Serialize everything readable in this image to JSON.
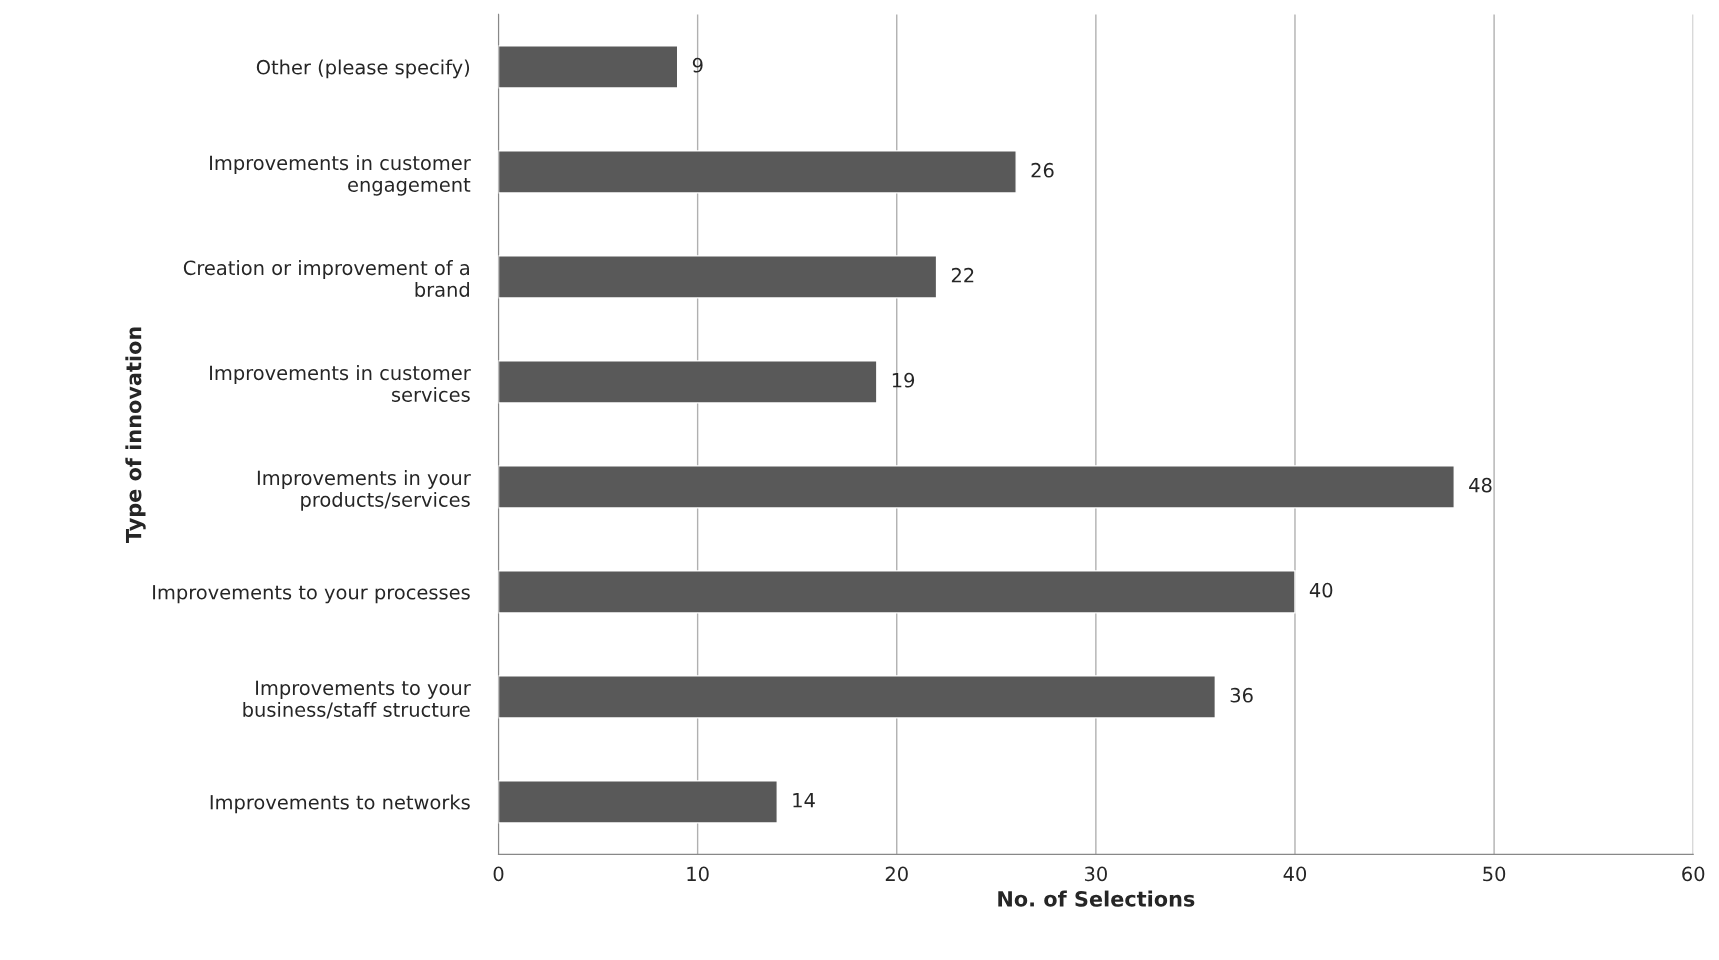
{
  "chart_data": {
    "type": "bar",
    "orientation": "horizontal",
    "xlabel": "No. of Selections",
    "ylabel": "Type of innovation",
    "categories": [
      "Other (please specify)",
      "Improvements in customer\nengagement",
      "Creation or improvement of a\nbrand",
      "Improvements in customer\nservices",
      "Improvements in your\nproducts/services",
      "Improvements to your processes",
      "Improvements to your\nbusiness/staff structure",
      "Improvements to networks"
    ],
    "values": [
      9,
      26,
      22,
      19,
      48,
      40,
      36,
      14
    ],
    "color": "#595959",
    "xlim": [
      0,
      60
    ],
    "xticks": [
      0,
      10,
      20,
      30,
      40,
      50,
      60
    ],
    "grid": "x",
    "data_labels": true,
    "legend": false
  }
}
